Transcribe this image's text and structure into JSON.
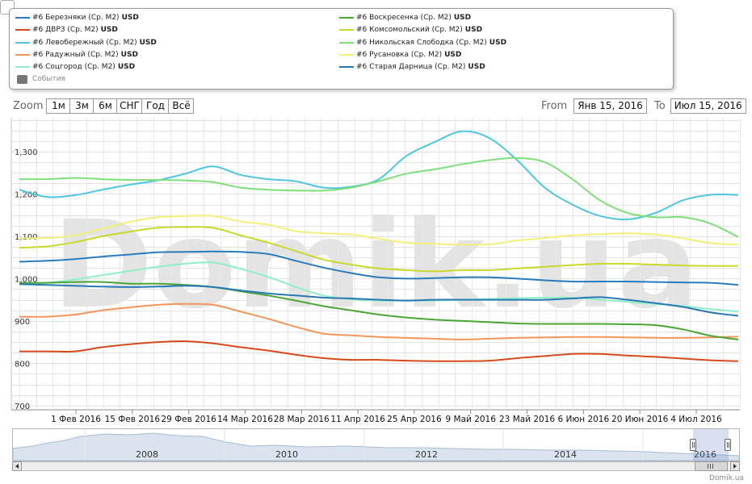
{
  "legend": {
    "items": [
      {
        "name": "#6 Березняки (Ср. М2)",
        "unit": "USD",
        "color": "#2b7bba"
      },
      {
        "name": "#6 ДВРЗ (Ср. М2)",
        "unit": "USD",
        "color": "#d64a1c"
      },
      {
        "name": "#6 Левобережный (Ср. М2)",
        "unit": "USD",
        "color": "#4fc6e0"
      },
      {
        "name": "#6 Радужный (Ср. М2)",
        "unit": "USD",
        "color": "#f4955a"
      },
      {
        "name": "#6 Соцгород (Ср. М2)",
        "unit": "USD",
        "color": "#8ff0c8"
      },
      {
        "name": "#6 Воскресенка (Ср. М2)",
        "unit": "USD",
        "color": "#4aa535"
      },
      {
        "name": "#6 Комсомольский (Ср. М2)",
        "unit": "USD",
        "color": "#c9d82a"
      },
      {
        "name": "#6 Никольская Слободка (Ср. М2)",
        "unit": "USD",
        "color": "#7ee07a"
      },
      {
        "name": "#6 Русановка (Ср. М2)",
        "unit": "USD",
        "color": "#f3f07a"
      },
      {
        "name": "#6 Старая Дарница (Ср. М2)",
        "unit": "USD",
        "color": "#2778b5"
      }
    ],
    "events_label": "События"
  },
  "zoom": {
    "label": "Zoom",
    "buttons": [
      "1м",
      "3м",
      "6м",
      "СНГ",
      "Год",
      "Всё"
    ]
  },
  "range": {
    "from_label": "From",
    "from_value": "Янв 15, 2016",
    "to_label": "To",
    "to_value": "Июл 15, 2016"
  },
  "watermark": "Domik.ua",
  "credits": "Domik.ua",
  "chart_data": {
    "type": "line",
    "ylim": [
      690,
      1380
    ],
    "yticks": [
      700,
      800,
      900,
      1000,
      1100,
      1200,
      1300
    ],
    "ytick_labels": [
      "700",
      "800",
      "900",
      "1,000",
      "1,100",
      "1,200",
      "1,300"
    ],
    "xticks": [
      "1 Фев 2016",
      "15 Фев 2016",
      "29 Фев 2016",
      "14 Мар 2016",
      "28 Мар 2016",
      "11 Апр 2016",
      "25 Апр 2016",
      "9 Май 2016",
      "23 Май 2016",
      "6 Июн 2016",
      "20 Июн 2016",
      "4 Июл 2016"
    ],
    "x": [
      "Янв 15",
      "Янв 22",
      "Янв 29",
      "Фев 5",
      "Фев 12",
      "Фев 19",
      "Фев 26",
      "Мар 4",
      "Мар 11",
      "Мар 18",
      "Мар 25",
      "Апр 1",
      "Апр 8",
      "Апр 15",
      "Апр 22",
      "Апр 29",
      "Май 6",
      "Май 13",
      "Май 20",
      "Май 27",
      "Июн 3",
      "Июн 10",
      "Июн 17",
      "Июн 24",
      "Июл 1",
      "Июл 8",
      "Июл 15"
    ],
    "series": [
      {
        "name": "#6 Березняки (Ср. М2)",
        "color": "#2b7bba",
        "values": [
          1040,
          1042,
          1046,
          1052,
          1057,
          1062,
          1063,
          1064,
          1063,
          1058,
          1042,
          1026,
          1013,
          1003,
          1000,
          1001,
          1003,
          1003,
          1000,
          996,
          993,
          993,
          993,
          992,
          991,
          990,
          985
        ]
      },
      {
        "name": "#6 ДВРЗ (Ср. М2)",
        "color": "#d64a1c",
        "values": [
          828,
          828,
          828,
          838,
          845,
          850,
          852,
          847,
          838,
          830,
          820,
          812,
          808,
          808,
          806,
          805,
          805,
          806,
          812,
          817,
          822,
          822,
          818,
          815,
          811,
          807,
          805
        ]
      },
      {
        "name": "#6 Левобережный (Ср. М2)",
        "color": "#4fc6e0",
        "values": [
          1210,
          1193,
          1197,
          1210,
          1222,
          1232,
          1248,
          1265,
          1245,
          1235,
          1230,
          1215,
          1217,
          1235,
          1290,
          1322,
          1348,
          1332,
          1280,
          1215,
          1175,
          1148,
          1140,
          1155,
          1185,
          1198,
          1198
        ]
      },
      {
        "name": "#6 Радужный (Ср. М2)",
        "color": "#f4955a",
        "values": [
          910,
          910,
          915,
          925,
          932,
          938,
          940,
          938,
          922,
          905,
          886,
          870,
          866,
          862,
          860,
          858,
          856,
          858,
          860,
          861,
          862,
          862,
          861,
          860,
          860,
          861,
          863
        ]
      },
      {
        "name": "#6 Соцгород (Ср. М2)",
        "color": "#8ff0c8",
        "values": [
          988,
          990,
          998,
          1008,
          1018,
          1028,
          1035,
          1038,
          1023,
          1004,
          980,
          960,
          951,
          948,
          948,
          948,
          950,
          952,
          954,
          955,
          955,
          950,
          945,
          940,
          935,
          928,
          922
        ]
      },
      {
        "name": "#6 Воскресенка (Ср. М2)",
        "color": "#4aa535",
        "values": [
          990,
          990,
          992,
          992,
          988,
          988,
          985,
          980,
          970,
          960,
          948,
          935,
          925,
          915,
          908,
          903,
          900,
          897,
          894,
          893,
          893,
          893,
          892,
          890,
          880,
          865,
          856
        ]
      },
      {
        "name": "#6 Комсомольский (Ср. М2)",
        "color": "#c9d82a",
        "values": [
          1073,
          1076,
          1086,
          1100,
          1111,
          1120,
          1122,
          1120,
          1102,
          1085,
          1065,
          1045,
          1033,
          1024,
          1020,
          1017,
          1020,
          1020,
          1024,
          1028,
          1032,
          1035,
          1035,
          1033,
          1031,
          1030,
          1030
        ]
      },
      {
        "name": "#6 Никольская Слободка (Ср. М2)",
        "color": "#7ee07a",
        "values": [
          1235,
          1235,
          1238,
          1235,
          1233,
          1233,
          1232,
          1228,
          1215,
          1210,
          1208,
          1208,
          1215,
          1230,
          1248,
          1258,
          1270,
          1280,
          1285,
          1275,
          1235,
          1185,
          1155,
          1145,
          1145,
          1130,
          1098
        ]
      },
      {
        "name": "#6 Русановка (Ср. М2)",
        "color": "#f3f07a",
        "values": [
          1095,
          1096,
          1102,
          1118,
          1134,
          1145,
          1148,
          1148,
          1135,
          1127,
          1112,
          1107,
          1104,
          1094,
          1085,
          1082,
          1080,
          1081,
          1090,
          1096,
          1102,
          1105,
          1107,
          1104,
          1095,
          1084,
          1080
        ]
      },
      {
        "name": "#6 Старая Дарница (Ср. М2)",
        "color": "#2778b5",
        "values": [
          987,
          985,
          983,
          981,
          980,
          981,
          983,
          980,
          972,
          965,
          960,
          955,
          953,
          950,
          948,
          950,
          950,
          950,
          950,
          950,
          953,
          956,
          950,
          942,
          933,
          920,
          912
        ]
      }
    ]
  },
  "navigator": {
    "labels": [
      "2008",
      "2010",
      "2012",
      "2014",
      "2016"
    ]
  }
}
